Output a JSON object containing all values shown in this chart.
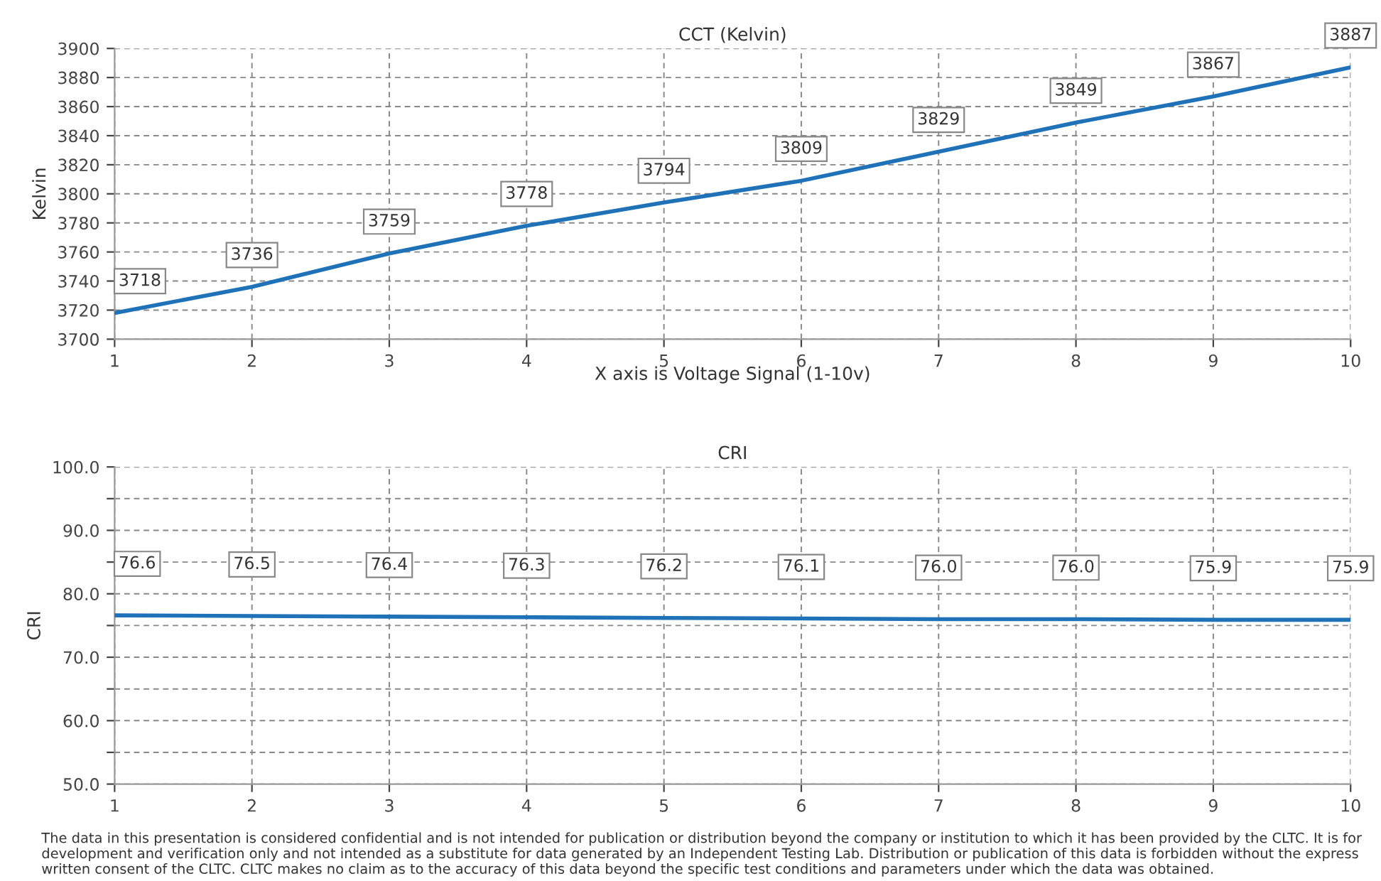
{
  "chart_data": [
    {
      "type": "line",
      "title": "CCT (Kelvin)",
      "xlabel": "X axis is Voltage Signal (1-10v)",
      "ylabel": "Kelvin",
      "x": [
        1,
        2,
        3,
        4,
        5,
        6,
        7,
        8,
        9,
        10
      ],
      "series": [
        {
          "color": "#1f72b8",
          "values": [
            3718,
            3736,
            3759,
            3778,
            3794,
            3809,
            3829,
            3849,
            3867,
            3887
          ]
        }
      ],
      "xlim": [
        1,
        10
      ],
      "xticks": [
        1,
        2,
        3,
        4,
        5,
        6,
        7,
        8,
        9,
        10
      ],
      "ylim": [
        3700,
        3900
      ],
      "yticks": [
        3700,
        3720,
        3740,
        3760,
        3780,
        3800,
        3820,
        3840,
        3860,
        3880,
        3900
      ],
      "grid": true,
      "line_style": "solid",
      "data_labels": true
    },
    {
      "type": "line",
      "title": "CRI",
      "ylabel": "CRI",
      "x": [
        1,
        2,
        3,
        4,
        5,
        6,
        7,
        8,
        9,
        10
      ],
      "series": [
        {
          "color": "#1f72b8",
          "values": [
            76.6,
            76.5,
            76.4,
            76.3,
            76.2,
            76.1,
            76.0,
            76.0,
            75.9,
            75.9
          ],
          "value_labels": [
            "76.6",
            "76.5",
            "76.4",
            "76.3",
            "76.2",
            "76.1",
            "76.0",
            "76.0",
            "75.9",
            "75.9"
          ]
        }
      ],
      "xlim": [
        1,
        10
      ],
      "xticks": [
        1,
        2,
        3,
        4,
        5,
        6,
        7,
        8,
        9,
        10
      ],
      "ylim": [
        50,
        100
      ],
      "yticks": [
        {
          "value": 50,
          "label": "50.0"
        },
        {
          "value": 55,
          "label": null
        },
        {
          "value": 60,
          "label": "60.0"
        },
        {
          "value": 65,
          "label": null
        },
        {
          "value": 70,
          "label": "70.0"
        },
        {
          "value": 75,
          "label": null
        },
        {
          "value": 80,
          "label": "80.0"
        },
        {
          "value": 85,
          "label": null
        },
        {
          "value": 90,
          "label": "90.0"
        },
        {
          "value": 95,
          "label": null
        },
        {
          "value": 100,
          "label": "100.0"
        }
      ],
      "grid": true,
      "line_style": "solid",
      "annotations": [
        "The data in this presentation is considered confidential and is not intended for publication or distribution beyond the company or institution to which it has been provided by the CLTC. It is for development and verification only and not intended as a substitute for data generated by an Independent Testing Lab. Distribution or publication of this data is forbidden without the express written consent of the CLTC. CLTC makes no claim as to the accuracy of this data beyond the specific test conditions and parameters under which the data was obtained."
      ]
    }
  ]
}
